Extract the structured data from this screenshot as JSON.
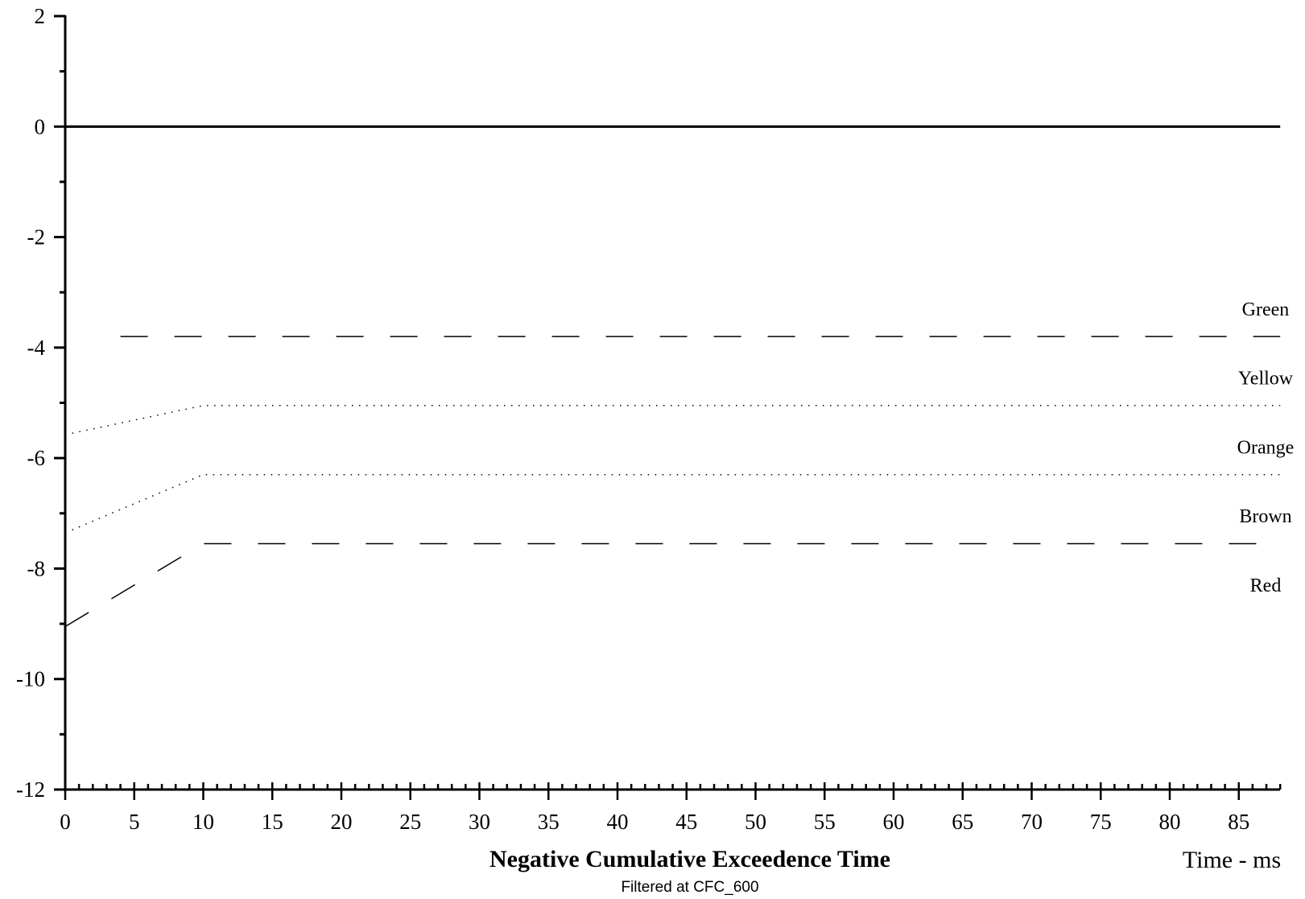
{
  "chart_data": {
    "type": "line",
    "title": "Negative Cumulative Exceedence Time",
    "subtitle": "Filtered at CFC_600",
    "xlabel": "Time - ms",
    "ylabel": "",
    "xlim": [
      0,
      88
    ],
    "ylim": [
      -12,
      2
    ],
    "x_ticks": [
      0,
      5,
      10,
      15,
      20,
      25,
      30,
      35,
      40,
      45,
      50,
      55,
      60,
      65,
      70,
      75,
      80,
      85
    ],
    "y_ticks": [
      2,
      0,
      -2,
      -4,
      -6,
      -8,
      -10,
      -12
    ],
    "grid": false,
    "series": [
      {
        "name": "",
        "style": "solid",
        "points": [
          [
            0,
            0
          ],
          [
            88,
            0
          ]
        ]
      },
      {
        "name": "Green",
        "style": "dashed",
        "points": [
          [
            4,
            -3.8
          ],
          [
            88,
            -3.8
          ]
        ]
      },
      {
        "name": "Yellow",
        "style": "dotted",
        "points": [
          [
            0.5,
            -5.55
          ],
          [
            10,
            -5.05
          ],
          [
            88,
            -5.05
          ]
        ]
      },
      {
        "name": "Orange",
        "style": "dotted",
        "points": [
          [
            0.5,
            -7.3
          ],
          [
            10,
            -6.3
          ],
          [
            88,
            -6.3
          ]
        ]
      },
      {
        "name": "Brown",
        "style": "dashed",
        "points": [
          [
            0,
            -9.05
          ],
          [
            10,
            -7.55
          ],
          [
            88,
            -7.55
          ]
        ]
      }
    ],
    "band_labels": [
      {
        "text": "Green",
        "y": -3.3
      },
      {
        "text": "Yellow",
        "y": -4.55
      },
      {
        "text": "Orange",
        "y": -5.8
      },
      {
        "text": "Brown",
        "y": -7.05
      },
      {
        "text": "Red",
        "y": -8.3
      }
    ]
  }
}
